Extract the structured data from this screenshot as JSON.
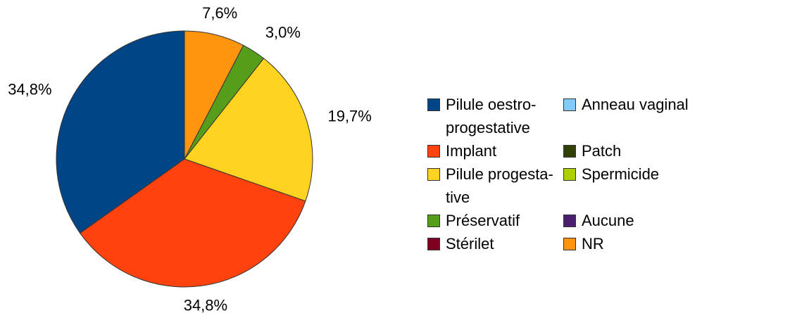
{
  "chart_data": {
    "type": "pie",
    "categories": [
      "Pilule oestro-progestative",
      "Implant",
      "Pilule progesta­tive",
      "Préservatif",
      "Stérilet",
      "Anneau vaginal",
      "Patch",
      "Spermicide",
      "Aucune",
      "NR"
    ],
    "values": [
      34.8,
      34.8,
      19.7,
      3.0,
      0,
      0,
      0,
      0,
      0,
      7.6
    ],
    "value_labels": [
      "34,8%",
      "34,8%",
      "19,7%",
      "3,0%",
      null,
      null,
      null,
      null,
      null,
      "7,6%"
    ],
    "colors": [
      "#004586",
      "#ff420e",
      "#ffd320",
      "#579d1c",
      "#7e0021",
      "#83caff",
      "#314004",
      "#aecf00",
      "#4b1f6f",
      "#ff950e"
    ]
  }
}
